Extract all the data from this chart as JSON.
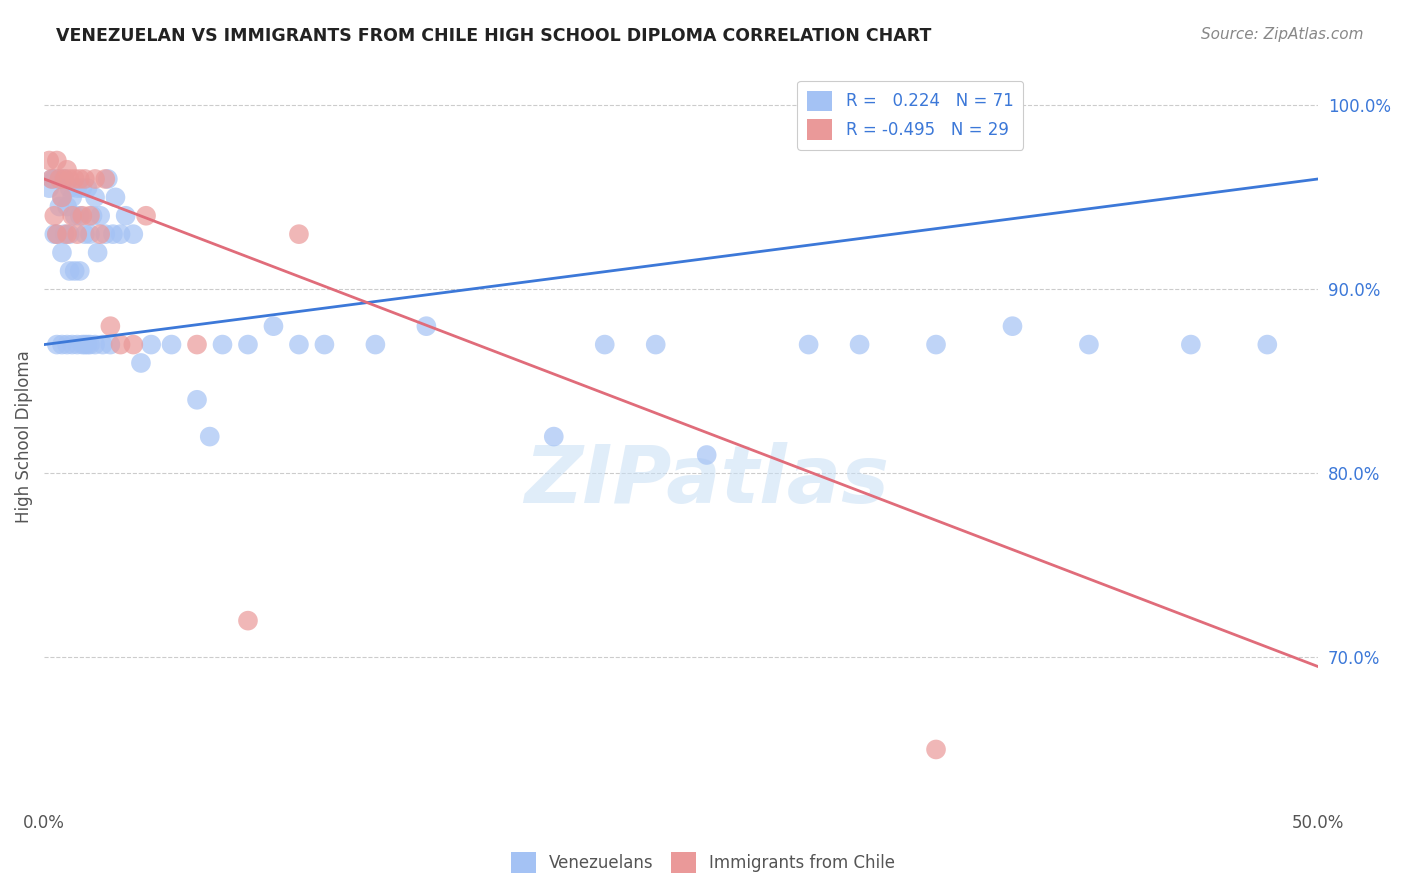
{
  "title": "VENEZUELAN VS IMMIGRANTS FROM CHILE HIGH SCHOOL DIPLOMA CORRELATION CHART",
  "source": "Source: ZipAtlas.com",
  "ylabel": "High School Diploma",
  "xlim": [
    0.0,
    0.5
  ],
  "ylim": [
    0.62,
    1.02
  ],
  "xtick_positions": [
    0.0,
    0.1,
    0.2,
    0.3,
    0.4,
    0.5
  ],
  "xtick_labels": [
    "0.0%",
    "",
    "",
    "",
    "",
    "50.0%"
  ],
  "ytick_vals_right": [
    1.0,
    0.9,
    0.8,
    0.7
  ],
  "ytick_labels_right": [
    "100.0%",
    "90.0%",
    "80.0%",
    "70.0%"
  ],
  "blue_color": "#a4c2f4",
  "pink_color": "#ea9999",
  "blue_line_color": "#3c78d8",
  "pink_line_color": "#e06c7a",
  "watermark": "ZIPatlas",
  "venezuelan_x": [
    0.002,
    0.003,
    0.004,
    0.004,
    0.005,
    0.005,
    0.006,
    0.006,
    0.007,
    0.007,
    0.007,
    0.008,
    0.008,
    0.009,
    0.009,
    0.01,
    0.01,
    0.01,
    0.011,
    0.011,
    0.012,
    0.012,
    0.013,
    0.013,
    0.014,
    0.014,
    0.015,
    0.015,
    0.016,
    0.016,
    0.017,
    0.017,
    0.018,
    0.018,
    0.019,
    0.02,
    0.02,
    0.021,
    0.022,
    0.023,
    0.024,
    0.025,
    0.026,
    0.027,
    0.028,
    0.03,
    0.032,
    0.035,
    0.038,
    0.042,
    0.05,
    0.06,
    0.065,
    0.07,
    0.08,
    0.09,
    0.1,
    0.11,
    0.13,
    0.15,
    0.2,
    0.22,
    0.24,
    0.26,
    0.3,
    0.32,
    0.35,
    0.38,
    0.41,
    0.45,
    0.48
  ],
  "venezuelan_y": [
    0.955,
    0.96,
    0.93,
    0.96,
    0.87,
    0.93,
    0.945,
    0.96,
    0.87,
    0.92,
    0.95,
    0.93,
    0.96,
    0.87,
    0.945,
    0.91,
    0.93,
    0.955,
    0.87,
    0.95,
    0.91,
    0.94,
    0.87,
    0.955,
    0.91,
    0.94,
    0.87,
    0.955,
    0.87,
    0.93,
    0.87,
    0.955,
    0.87,
    0.93,
    0.94,
    0.87,
    0.95,
    0.92,
    0.94,
    0.87,
    0.93,
    0.96,
    0.87,
    0.93,
    0.95,
    0.93,
    0.94,
    0.93,
    0.86,
    0.87,
    0.87,
    0.84,
    0.82,
    0.87,
    0.87,
    0.88,
    0.87,
    0.87,
    0.87,
    0.88,
    0.82,
    0.87,
    0.87,
    0.81,
    0.87,
    0.87,
    0.87,
    0.88,
    0.87,
    0.87,
    0.87
  ],
  "chile_x": [
    0.002,
    0.003,
    0.004,
    0.005,
    0.005,
    0.006,
    0.007,
    0.008,
    0.009,
    0.009,
    0.01,
    0.011,
    0.012,
    0.013,
    0.014,
    0.015,
    0.016,
    0.018,
    0.02,
    0.022,
    0.024,
    0.026,
    0.03,
    0.035,
    0.04,
    0.06,
    0.08,
    0.1,
    0.35
  ],
  "chile_y": [
    0.97,
    0.96,
    0.94,
    0.97,
    0.93,
    0.96,
    0.95,
    0.96,
    0.93,
    0.965,
    0.96,
    0.94,
    0.96,
    0.93,
    0.96,
    0.94,
    0.96,
    0.94,
    0.96,
    0.93,
    0.96,
    0.88,
    0.87,
    0.87,
    0.94,
    0.87,
    0.72,
    0.93,
    0.65
  ],
  "blue_line_x0": 0.0,
  "blue_line_x1": 0.5,
  "blue_line_y0": 0.87,
  "blue_line_y1": 0.96,
  "pink_line_x0": 0.0,
  "pink_line_x1": 0.5,
  "pink_line_y0": 0.96,
  "pink_line_y1": 0.695
}
